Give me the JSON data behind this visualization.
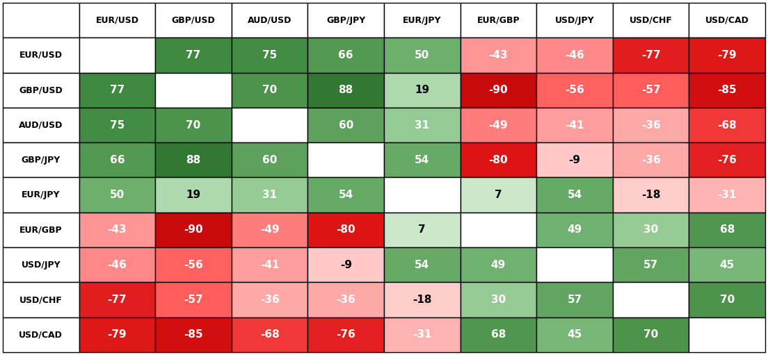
{
  "pairs": [
    "EUR/USD",
    "GBP/USD",
    "AUD/USD",
    "GBP/JPY",
    "EUR/JPY",
    "EUR/GBP",
    "USD/JPY",
    "USD/CHF",
    "USD/CAD"
  ],
  "matrix": [
    [
      null,
      77,
      75,
      66,
      50,
      -43,
      -46,
      -77,
      -79
    ],
    [
      77,
      null,
      70,
      88,
      19,
      -90,
      -56,
      -57,
      -85
    ],
    [
      75,
      70,
      null,
      60,
      31,
      -49,
      -41,
      -36,
      -68
    ],
    [
      66,
      88,
      60,
      null,
      54,
      -80,
      -9,
      -36,
      -76
    ],
    [
      50,
      19,
      31,
      54,
      null,
      7,
      54,
      -18,
      -31
    ],
    [
      -43,
      -90,
      -49,
      -80,
      7,
      null,
      49,
      30,
      68
    ],
    [
      -46,
      -56,
      -41,
      -9,
      54,
      49,
      null,
      57,
      45
    ],
    [
      -77,
      -57,
      -36,
      -36,
      -18,
      30,
      57,
      null,
      70
    ],
    [
      -79,
      -85,
      -68,
      -76,
      -31,
      68,
      45,
      70,
      null
    ]
  ],
  "col_headers": [
    "EUR/USD",
    "GBP/USD",
    "AUD/USD",
    "GBP/JPY",
    "EUR/JPY",
    "EUR/GBP",
    "USD/JPY",
    "USD/CHF",
    "USD/CAD"
  ],
  "row_headers": [
    "EUR/USD",
    "GBP/USD",
    "AUD/USD",
    "GBP/JPY",
    "EUR/JPY",
    "EUR/GBP",
    "USD/JPY",
    "USD/CHF",
    "USD/CAD"
  ],
  "header_fontsize": 9,
  "cell_fontsize": 11,
  "edge_color": "#000000",
  "edge_linewidth": 1.0,
  "header_bg": "#ffffff",
  "cell_empty_bg": "#ffffff",
  "near_zero_threshold": 20,
  "green_colors": {
    "low": [
      204,
      229,
      204
    ],
    "mid": [
      120,
      185,
      120
    ],
    "high": [
      67,
      138,
      67
    ],
    "very_high": [
      34,
      100,
      34
    ]
  },
  "red_colors": {
    "very_low": [
      255,
      230,
      230
    ],
    "low": [
      255,
      180,
      180
    ],
    "mid": [
      255,
      100,
      100
    ],
    "high": [
      220,
      30,
      30
    ],
    "very_high": [
      180,
      0,
      0
    ]
  }
}
